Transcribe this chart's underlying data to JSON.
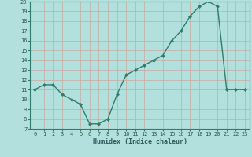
{
  "x": [
    0,
    1,
    2,
    3,
    4,
    5,
    6,
    7,
    8,
    9,
    10,
    11,
    12,
    13,
    14,
    15,
    16,
    17,
    18,
    19,
    20,
    21,
    22,
    23
  ],
  "y": [
    11,
    11.5,
    11.5,
    10.5,
    10,
    9.5,
    7.5,
    7.5,
    8,
    10.5,
    12.5,
    13,
    13.5,
    14,
    14.5,
    16,
    17,
    18.5,
    19.5,
    20,
    19.5,
    11,
    11,
    11
  ],
  "xlabel": "Humidex (Indice chaleur)",
  "ylim": [
    7,
    20
  ],
  "xlim_min": -0.5,
  "xlim_max": 23.5,
  "yticks": [
    7,
    8,
    9,
    10,
    11,
    12,
    13,
    14,
    15,
    16,
    17,
    18,
    19,
    20
  ],
  "xticks": [
    0,
    1,
    2,
    3,
    4,
    5,
    6,
    7,
    8,
    9,
    10,
    11,
    12,
    13,
    14,
    15,
    16,
    17,
    18,
    19,
    20,
    21,
    22,
    23
  ],
  "line_color": "#2e7d6e",
  "marker": "D",
  "marker_size": 2.0,
  "bg_color": "#b2e0dc",
  "grid_color": "#c8a8a0",
  "tick_label_color": "#2e5a5a",
  "xlabel_color": "#2e5a5a",
  "line_width": 1.0,
  "fig_bg_color": "#b2e0dc"
}
